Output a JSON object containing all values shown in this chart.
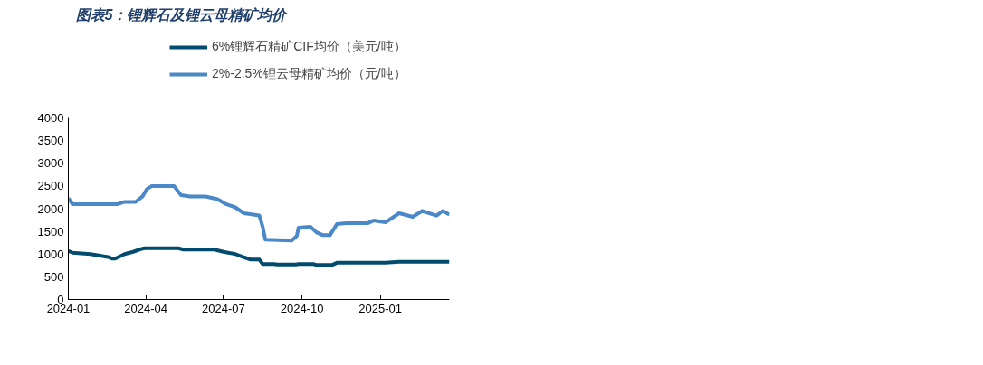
{
  "chart_data": {
    "type": "line",
    "title": "图表5：锂辉石及锂云母精矿均价",
    "series": [
      {
        "name": "6%锂辉石精矿CIF均价（美元/吨）",
        "color": "#004b6e",
        "x": [
          "2024-01-01",
          "2024-01-06",
          "2024-01-27",
          "2024-02-18",
          "2024-02-21",
          "2024-02-25",
          "2024-03-07",
          "2024-03-17",
          "2024-03-28",
          "2024-03-31",
          "2024-05-09",
          "2024-05-15",
          "2024-06-20",
          "2024-07-01",
          "2024-07-15",
          "2024-07-25",
          "2024-08-02",
          "2024-08-12",
          "2024-08-16",
          "2024-08-29",
          "2024-09-02",
          "2024-09-24",
          "2024-09-27",
          "2024-10-15",
          "2024-10-18",
          "2024-11-05",
          "2024-11-11",
          "2025-01-07",
          "2025-01-23",
          "2025-03-23"
        ],
        "values": [
          1070,
          1030,
          1000,
          930,
          900,
          900,
          1000,
          1050,
          1120,
          1130,
          1130,
          1100,
          1100,
          1050,
          1000,
          930,
          880,
          880,
          780,
          780,
          770,
          770,
          780,
          780,
          760,
          760,
          810,
          810,
          830,
          830
        ]
      },
      {
        "name": "2%-2.5%锂云母精矿均价（元/吨）",
        "color": "#4a88c7",
        "x": [
          "2024-01-01",
          "2024-01-06",
          "2024-02-28",
          "2024-03-07",
          "2024-03-20",
          "2024-03-28",
          "2024-04-02",
          "2024-04-08",
          "2024-05-04",
          "2024-05-12",
          "2024-05-23",
          "2024-06-10",
          "2024-06-24",
          "2024-07-04",
          "2024-07-15",
          "2024-07-25",
          "2024-08-12",
          "2024-08-16",
          "2024-08-19",
          "2024-09-19",
          "2024-09-25",
          "2024-09-27",
          "2024-10-11",
          "2024-10-18",
          "2024-10-25",
          "2024-11-03",
          "2024-11-11",
          "2024-11-22",
          "2024-12-17",
          "2024-12-24",
          "2025-01-07",
          "2025-01-23",
          "2025-02-08",
          "2025-02-19",
          "2025-03-08",
          "2025-03-15",
          "2025-03-23"
        ],
        "values": [
          2230,
          2100,
          2100,
          2150,
          2150,
          2270,
          2430,
          2500,
          2500,
          2300,
          2270,
          2270,
          2210,
          2100,
          2030,
          1900,
          1850,
          1600,
          1320,
          1300,
          1400,
          1580,
          1600,
          1480,
          1420,
          1420,
          1660,
          1680,
          1680,
          1740,
          1700,
          1900,
          1820,
          1950,
          1850,
          1950,
          1870
        ]
      }
    ],
    "xlim": [
      "2024-01-01",
      "2025-03-23"
    ],
    "xticks": [
      "2024-01",
      "2024-04",
      "2024-07",
      "2024-10",
      "2025-01"
    ],
    "ylim": [
      0,
      4000
    ],
    "yticks": [
      0,
      500,
      1000,
      1500,
      2000,
      2500,
      3000,
      3500,
      4000
    ],
    "grid": false,
    "legend": "top",
    "line_style": "solid",
    "marker": "none"
  }
}
